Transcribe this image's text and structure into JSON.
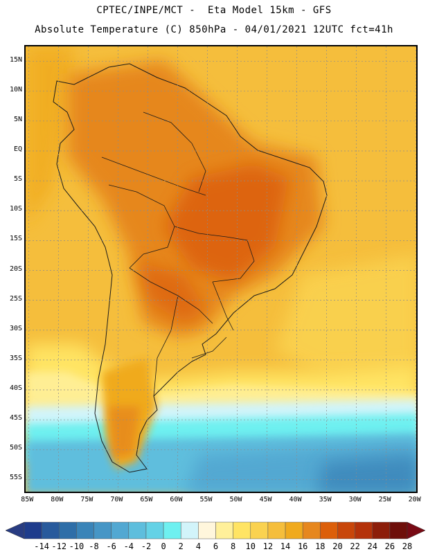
{
  "header": {
    "line1": "CPTEC/INPE/MCT -  Eta Model 15km - GFS",
    "line2": "Absolute Temperature (C) 850hPa - 04/01/2021 12UTC fct=41h"
  },
  "map": {
    "lat_labels": [
      "15N",
      "10N",
      "5N",
      "EQ",
      "5S",
      "10S",
      "15S",
      "20S",
      "25S",
      "30S",
      "35S",
      "40S",
      "45S",
      "50S",
      "55S"
    ],
    "lat_values": [
      15,
      10,
      5,
      0,
      -5,
      -10,
      -15,
      -20,
      -25,
      -30,
      -35,
      -40,
      -45,
      -50,
      -55
    ],
    "lon_labels": [
      "85W",
      "80W",
      "75W",
      "70W",
      "65W",
      "60W",
      "55W",
      "50W",
      "45W",
      "40W",
      "35W",
      "30W",
      "25W",
      "20W"
    ],
    "lon_values": [
      -85,
      -80,
      -75,
      -70,
      -65,
      -60,
      -55,
      -50,
      -45,
      -40,
      -35,
      -30,
      -25,
      -20
    ],
    "extent": {
      "lon_min": -85.5,
      "lon_max": -19.5,
      "lat_min": -57.5,
      "lat_max": 17.5
    }
  },
  "colorbar": {
    "labels": [
      "-14",
      "-12",
      "-10",
      "-8",
      "-6",
      "-4",
      "-2",
      "0",
      "2",
      "4",
      "6",
      "8",
      "10",
      "12",
      "14",
      "16",
      "18",
      "20",
      "22",
      "24",
      "26",
      "28"
    ],
    "colors": [
      "#1e3c8c",
      "#285a9c",
      "#2e6ea8",
      "#3a84b8",
      "#4696c6",
      "#52a8d2",
      "#5ebedd",
      "#64d2e6",
      "#6ef0f0",
      "#d2f4fa",
      "#fff6dc",
      "#fff09a",
      "#ffe464",
      "#fad250",
      "#f5be3c",
      "#f0aa1e",
      "#e6871e",
      "#dc5f0a",
      "#c8460a",
      "#b4320a",
      "#8c1e0a",
      "#6e0f0a"
    ],
    "under_color": "#283c82",
    "over_color": "#780a14"
  }
}
